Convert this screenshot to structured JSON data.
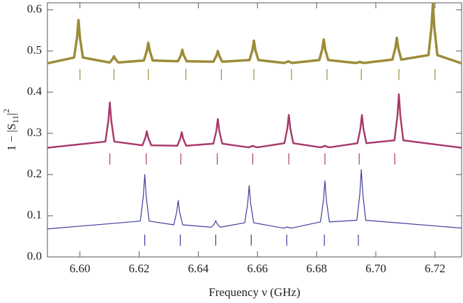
{
  "chart_data": {
    "type": "line",
    "x_label": "Frequency ν (GHz)",
    "y_label": [
      "1 − |S",
      "11",
      "|",
      "2"
    ],
    "xlim": [
      6.589,
      6.729
    ],
    "ylim": [
      0,
      0.617
    ],
    "xticks": [
      {
        "value": 6.6,
        "label": "6.60"
      },
      6.62,
      6.64,
      6.66,
      6.68,
      {
        "value": 6.7,
        "label": "6.70"
      },
      6.72
    ],
    "yticks": [
      {
        "value": 0,
        "label": "0.0"
      },
      0.1,
      0.2,
      0.3,
      0.4,
      0.5,
      0.6
    ],
    "series": [
      {
        "color": "#9c8c38",
        "line_width": 3.5,
        "x": [
          6.589,
          6.598,
          6.599,
          6.5995,
          6.6,
          6.601,
          6.61,
          6.611,
          6.6115,
          6.612,
          6.613,
          6.6216,
          6.6226,
          6.6231,
          6.6236,
          6.6246,
          6.6331,
          6.6341,
          6.6346,
          6.6351,
          6.6361,
          6.6451,
          6.6461,
          6.6466,
          6.6471,
          6.6481,
          6.6573,
          6.6583,
          6.6588,
          6.6593,
          6.6603,
          6.6689,
          6.6699,
          6.6704,
          6.6709,
          6.6719,
          6.6809,
          6.6819,
          6.6824,
          6.6829,
          6.6839,
          6.6931,
          6.6941,
          6.6946,
          6.6951,
          6.6961,
          6.7056,
          6.7066,
          6.7071,
          6.7076,
          6.7086,
          6.7178,
          6.7188,
          6.7193,
          6.7198,
          6.7208,
          6.729
        ],
        "values": [
          0.47,
          0.484,
          0.532,
          0.575,
          0.532,
          0.484,
          0.472,
          0.48,
          0.487,
          0.48,
          0.472,
          0.477,
          0.5,
          0.52,
          0.5,
          0.477,
          0.475,
          0.489,
          0.503,
          0.489,
          0.475,
          0.474,
          0.488,
          0.5,
          0.488,
          0.474,
          0.478,
          0.502,
          0.525,
          0.502,
          0.478,
          0.471,
          0.473,
          0.475,
          0.473,
          0.471,
          0.478,
          0.504,
          0.528,
          0.504,
          0.478,
          0.471,
          0.472,
          0.474,
          0.472,
          0.471,
          0.479,
          0.507,
          0.532,
          0.507,
          0.479,
          0.49,
          0.556,
          0.615,
          0.556,
          0.49,
          0.47
        ],
        "markers": [
          6.6,
          6.6115,
          6.6231,
          6.6358,
          6.6478,
          6.6588,
          6.6715,
          6.6835,
          6.6951,
          6.7078,
          6.72
        ]
      },
      {
        "color": "#a83a6c",
        "line_width": 2.5,
        "x": [
          6.589,
          6.6086,
          6.6096,
          6.6101,
          6.6106,
          6.6116,
          6.6211,
          6.6221,
          6.6226,
          6.6231,
          6.6241,
          6.6329,
          6.6339,
          6.6344,
          6.6349,
          6.6359,
          6.6451,
          6.6461,
          6.6466,
          6.6471,
          6.6481,
          6.6569,
          6.6579,
          6.6584,
          6.6589,
          6.6599,
          6.6691,
          6.6701,
          6.6706,
          6.6711,
          6.6721,
          6.6813,
          6.6823,
          6.6828,
          6.6833,
          6.6843,
          6.6938,
          6.6948,
          6.6953,
          6.6958,
          6.6968,
          6.7063,
          6.7073,
          6.7078,
          6.7083,
          6.7093,
          6.729
        ],
        "values": [
          0.265,
          0.28,
          0.33,
          0.375,
          0.33,
          0.28,
          0.271,
          0.289,
          0.305,
          0.289,
          0.271,
          0.27,
          0.287,
          0.303,
          0.287,
          0.27,
          0.275,
          0.306,
          0.335,
          0.306,
          0.275,
          0.266,
          0.268,
          0.27,
          0.268,
          0.266,
          0.276,
          0.312,
          0.345,
          0.312,
          0.276,
          0.266,
          0.268,
          0.27,
          0.268,
          0.266,
          0.276,
          0.312,
          0.345,
          0.312,
          0.276,
          0.283,
          0.342,
          0.395,
          0.342,
          0.283,
          0.265
        ],
        "markers": [
          6.6101,
          6.6224,
          6.6341,
          6.6464,
          6.6584,
          6.6706,
          6.6828,
          6.6944,
          6.7064
        ]
      },
      {
        "color": "#3c3c9c",
        "line_width": 1.2,
        "x": [
          6.589,
          6.6204,
          6.6214,
          6.6219,
          6.6224,
          6.6234,
          6.6317,
          6.6327,
          6.6332,
          6.6337,
          6.6347,
          6.6444,
          6.6454,
          6.6459,
          6.6464,
          6.6474,
          6.6557,
          6.6567,
          6.6572,
          6.6577,
          6.6587,
          6.6686,
          6.6696,
          6.6701,
          6.6706,
          6.6716,
          6.6813,
          6.6823,
          6.6828,
          6.6833,
          6.6843,
          6.6936,
          6.6946,
          6.6951,
          6.6956,
          6.6966,
          6.729
        ],
        "values": [
          0.068,
          0.087,
          0.146,
          0.2,
          0.146,
          0.087,
          0.078,
          0.109,
          0.137,
          0.109,
          0.078,
          0.072,
          0.08,
          0.088,
          0.08,
          0.072,
          0.083,
          0.13,
          0.173,
          0.13,
          0.083,
          0.07,
          0.071,
          0.073,
          0.071,
          0.07,
          0.085,
          0.137,
          0.185,
          0.137,
          0.085,
          0.089,
          0.153,
          0.212,
          0.153,
          0.089,
          0.07
        ],
        "markers": [
          6.6219,
          6.6339,
          6.6459,
          6.6579,
          6.6699,
          6.6826,
          6.6941
        ]
      }
    ]
  }
}
